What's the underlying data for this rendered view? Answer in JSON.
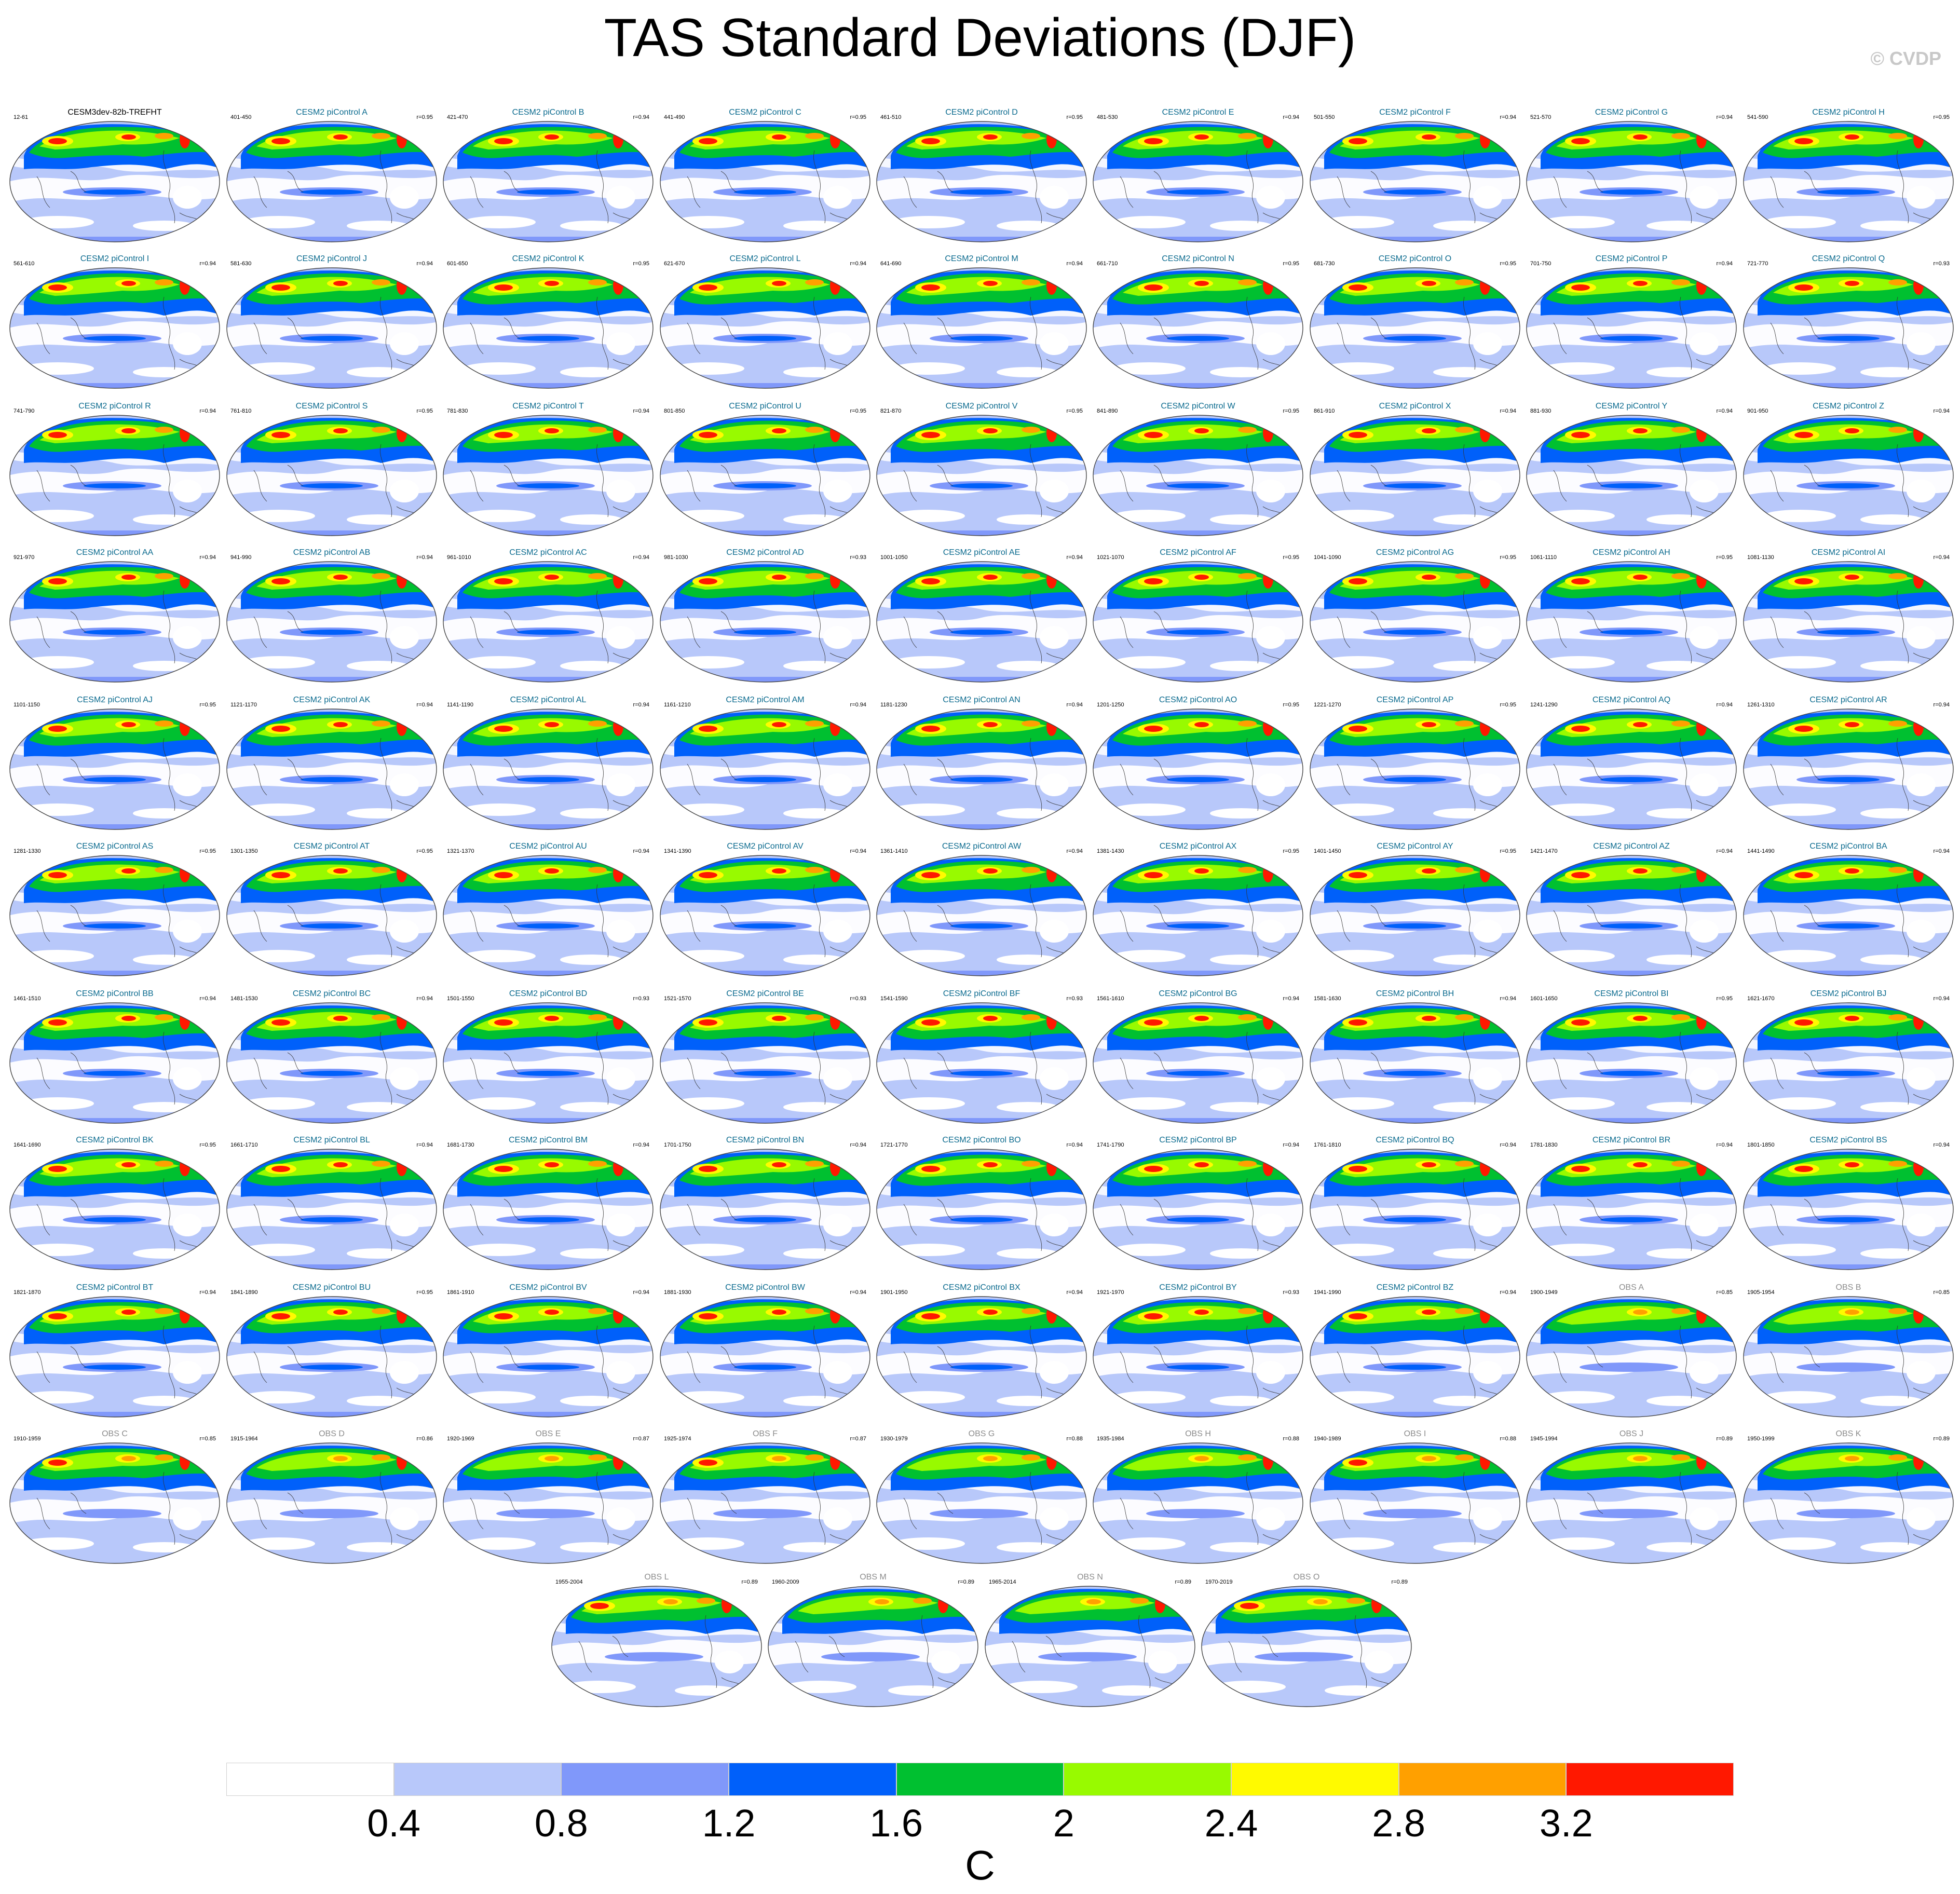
{
  "title": "TAS Standard Deviations (DJF)",
  "copyright": "© CVDP",
  "colors": {
    "levels": [
      "#ffffff",
      "#b8c8fa",
      "#8098fa",
      "#0060fa",
      "#00c030",
      "#98fa00",
      "#fffa00",
      "#ffa000",
      "#ff1800"
    ],
    "model_title": "#0a6a8e",
    "obs_title": "#8c8c8c",
    "first_title": "#000000"
  },
  "chart_data": {
    "type": "heatmap",
    "title": "TAS Standard Deviations (DJF)",
    "units": "C",
    "contour_levels": [
      0.4,
      0.8,
      1.2,
      1.6,
      2,
      2.4,
      2.8,
      3.2
    ],
    "colorbar": {
      "tick_labels": [
        "0.4",
        "0.8",
        "1.2",
        "1.6",
        "2",
        "2.4",
        "2.8",
        "3.2"
      ],
      "units_label": "C"
    },
    "panels": [
      {
        "title": "CESM3dev-82b-TREFHT",
        "years": "12-61",
        "r": ""
      },
      {
        "title": "CESM2 piControl A",
        "years": "401-450",
        "r": "r=0.95"
      },
      {
        "title": "CESM2 piControl B",
        "years": "421-470",
        "r": "r=0.94"
      },
      {
        "title": "CESM2 piControl C",
        "years": "441-490",
        "r": "r=0.95"
      },
      {
        "title": "CESM2 piControl D",
        "years": "461-510",
        "r": "r=0.95"
      },
      {
        "title": "CESM2 piControl E",
        "years": "481-530",
        "r": "r=0.94"
      },
      {
        "title": "CESM2 piControl F",
        "years": "501-550",
        "r": "r=0.94"
      },
      {
        "title": "CESM2 piControl G",
        "years": "521-570",
        "r": "r=0.94"
      },
      {
        "title": "CESM2 piControl H",
        "years": "541-590",
        "r": "r=0.95"
      },
      {
        "title": "CESM2 piControl I",
        "years": "561-610",
        "r": "r=0.94"
      },
      {
        "title": "CESM2 piControl J",
        "years": "581-630",
        "r": "r=0.94"
      },
      {
        "title": "CESM2 piControl K",
        "years": "601-650",
        "r": "r=0.95"
      },
      {
        "title": "CESM2 piControl L",
        "years": "621-670",
        "r": "r=0.94"
      },
      {
        "title": "CESM2 piControl M",
        "years": "641-690",
        "r": "r=0.94"
      },
      {
        "title": "CESM2 piControl N",
        "years": "661-710",
        "r": "r=0.95"
      },
      {
        "title": "CESM2 piControl O",
        "years": "681-730",
        "r": "r=0.95"
      },
      {
        "title": "CESM2 piControl P",
        "years": "701-750",
        "r": "r=0.94"
      },
      {
        "title": "CESM2 piControl Q",
        "years": "721-770",
        "r": "r=0.93"
      },
      {
        "title": "CESM2 piControl R",
        "years": "741-790",
        "r": "r=0.94"
      },
      {
        "title": "CESM2 piControl S",
        "years": "761-810",
        "r": "r=0.95"
      },
      {
        "title": "CESM2 piControl T",
        "years": "781-830",
        "r": "r=0.94"
      },
      {
        "title": "CESM2 piControl U",
        "years": "801-850",
        "r": "r=0.95"
      },
      {
        "title": "CESM2 piControl V",
        "years": "821-870",
        "r": "r=0.95"
      },
      {
        "title": "CESM2 piControl W",
        "years": "841-890",
        "r": "r=0.95"
      },
      {
        "title": "CESM2 piControl X",
        "years": "861-910",
        "r": "r=0.94"
      },
      {
        "title": "CESM2 piControl Y",
        "years": "881-930",
        "r": "r=0.94"
      },
      {
        "title": "CESM2 piControl Z",
        "years": "901-950",
        "r": "r=0.94"
      },
      {
        "title": "CESM2 piControl AA",
        "years": "921-970",
        "r": "r=0.94"
      },
      {
        "title": "CESM2 piControl AB",
        "years": "941-990",
        "r": "r=0.94"
      },
      {
        "title": "CESM2 piControl AC",
        "years": "961-1010",
        "r": "r=0.94"
      },
      {
        "title": "CESM2 piControl AD",
        "years": "981-1030",
        "r": "r=0.93"
      },
      {
        "title": "CESM2 piControl AE",
        "years": "1001-1050",
        "r": "r=0.94"
      },
      {
        "title": "CESM2 piControl AF",
        "years": "1021-1070",
        "r": "r=0.95"
      },
      {
        "title": "CESM2 piControl AG",
        "years": "1041-1090",
        "r": "r=0.95"
      },
      {
        "title": "CESM2 piControl AH",
        "years": "1061-1110",
        "r": "r=0.95"
      },
      {
        "title": "CESM2 piControl AI",
        "years": "1081-1130",
        "r": "r=0.94"
      },
      {
        "title": "CESM2 piControl AJ",
        "years": "1101-1150",
        "r": "r=0.95"
      },
      {
        "title": "CESM2 piControl AK",
        "years": "1121-1170",
        "r": "r=0.94"
      },
      {
        "title": "CESM2 piControl AL",
        "years": "1141-1190",
        "r": "r=0.94"
      },
      {
        "title": "CESM2 piControl AM",
        "years": "1161-1210",
        "r": "r=0.94"
      },
      {
        "title": "CESM2 piControl AN",
        "years": "1181-1230",
        "r": "r=0.94"
      },
      {
        "title": "CESM2 piControl AO",
        "years": "1201-1250",
        "r": "r=0.95"
      },
      {
        "title": "CESM2 piControl AP",
        "years": "1221-1270",
        "r": "r=0.95"
      },
      {
        "title": "CESM2 piControl AQ",
        "years": "1241-1290",
        "r": "r=0.94"
      },
      {
        "title": "CESM2 piControl AR",
        "years": "1261-1310",
        "r": "r=0.94"
      },
      {
        "title": "CESM2 piControl AS",
        "years": "1281-1330",
        "r": "r=0.95"
      },
      {
        "title": "CESM2 piControl AT",
        "years": "1301-1350",
        "r": "r=0.95"
      },
      {
        "title": "CESM2 piControl AU",
        "years": "1321-1370",
        "r": "r=0.94"
      },
      {
        "title": "CESM2 piControl AV",
        "years": "1341-1390",
        "r": "r=0.94"
      },
      {
        "title": "CESM2 piControl AW",
        "years": "1361-1410",
        "r": "r=0.94"
      },
      {
        "title": "CESM2 piControl AX",
        "years": "1381-1430",
        "r": "r=0.95"
      },
      {
        "title": "CESM2 piControl AY",
        "years": "1401-1450",
        "r": "r=0.95"
      },
      {
        "title": "CESM2 piControl AZ",
        "years": "1421-1470",
        "r": "r=0.94"
      },
      {
        "title": "CESM2 piControl BA",
        "years": "1441-1490",
        "r": "r=0.94"
      },
      {
        "title": "CESM2 piControl BB",
        "years": "1461-1510",
        "r": "r=0.94"
      },
      {
        "title": "CESM2 piControl BC",
        "years": "1481-1530",
        "r": "r=0.94"
      },
      {
        "title": "CESM2 piControl BD",
        "years": "1501-1550",
        "r": "r=0.93"
      },
      {
        "title": "CESM2 piControl BE",
        "years": "1521-1570",
        "r": "r=0.93"
      },
      {
        "title": "CESM2 piControl BF",
        "years": "1541-1590",
        "r": "r=0.93"
      },
      {
        "title": "CESM2 piControl BG",
        "years": "1561-1610",
        "r": "r=0.94"
      },
      {
        "title": "CESM2 piControl BH",
        "years": "1581-1630",
        "r": "r=0.94"
      },
      {
        "title": "CESM2 piControl BI",
        "years": "1601-1650",
        "r": "r=0.95"
      },
      {
        "title": "CESM2 piControl BJ",
        "years": "1621-1670",
        "r": "r=0.94"
      },
      {
        "title": "CESM2 piControl BK",
        "years": "1641-1690",
        "r": "r=0.95"
      },
      {
        "title": "CESM2 piControl BL",
        "years": "1661-1710",
        "r": "r=0.94"
      },
      {
        "title": "CESM2 piControl BM",
        "years": "1681-1730",
        "r": "r=0.94"
      },
      {
        "title": "CESM2 piControl BN",
        "years": "1701-1750",
        "r": "r=0.94"
      },
      {
        "title": "CESM2 piControl BO",
        "years": "1721-1770",
        "r": "r=0.94"
      },
      {
        "title": "CESM2 piControl BP",
        "years": "1741-1790",
        "r": "r=0.94"
      },
      {
        "title": "CESM2 piControl BQ",
        "years": "1761-1810",
        "r": "r=0.94"
      },
      {
        "title": "CESM2 piControl BR",
        "years": "1781-1830",
        "r": "r=0.94"
      },
      {
        "title": "CESM2 piControl BS",
        "years": "1801-1850",
        "r": "r=0.94"
      },
      {
        "title": "CESM2 piControl BT",
        "years": "1821-1870",
        "r": "r=0.94"
      },
      {
        "title": "CESM2 piControl BU",
        "years": "1841-1890",
        "r": "r=0.95"
      },
      {
        "title": "CESM2 piControl BV",
        "years": "1861-1910",
        "r": "r=0.94"
      },
      {
        "title": "CESM2 piControl BW",
        "years": "1881-1930",
        "r": "r=0.94"
      },
      {
        "title": "CESM2 piControl BX",
        "years": "1901-1950",
        "r": "r=0.94"
      },
      {
        "title": "CESM2 piControl BY",
        "years": "1921-1970",
        "r": "r=0.93"
      },
      {
        "title": "CESM2 piControl BZ",
        "years": "1941-1990",
        "r": "r=0.94"
      },
      {
        "title": "OBS A",
        "years": "1900-1949",
        "r": "r=0.85"
      },
      {
        "title": "OBS B",
        "years": "1905-1954",
        "r": "r=0.85"
      },
      {
        "title": "OBS C",
        "years": "1910-1959",
        "r": "r=0.85"
      },
      {
        "title": "OBS D",
        "years": "1915-1964",
        "r": "r=0.86"
      },
      {
        "title": "OBS E",
        "years": "1920-1969",
        "r": "r=0.87"
      },
      {
        "title": "OBS F",
        "years": "1925-1974",
        "r": "r=0.87"
      },
      {
        "title": "OBS G",
        "years": "1930-1979",
        "r": "r=0.88"
      },
      {
        "title": "OBS H",
        "years": "1935-1984",
        "r": "r=0.88"
      },
      {
        "title": "OBS I",
        "years": "1940-1989",
        "r": "r=0.88"
      },
      {
        "title": "OBS J",
        "years": "1945-1994",
        "r": "r=0.89"
      },
      {
        "title": "OBS K",
        "years": "1950-1999",
        "r": "r=0.89"
      },
      {
        "title": "OBS L",
        "years": "1955-2004",
        "r": "r=0.89"
      },
      {
        "title": "OBS M",
        "years": "1960-2009",
        "r": "r=0.89"
      },
      {
        "title": "OBS N",
        "years": "1965-2014",
        "r": "r=0.89"
      },
      {
        "title": "OBS O",
        "years": "1970-2019",
        "r": "r=0.89"
      }
    ]
  }
}
